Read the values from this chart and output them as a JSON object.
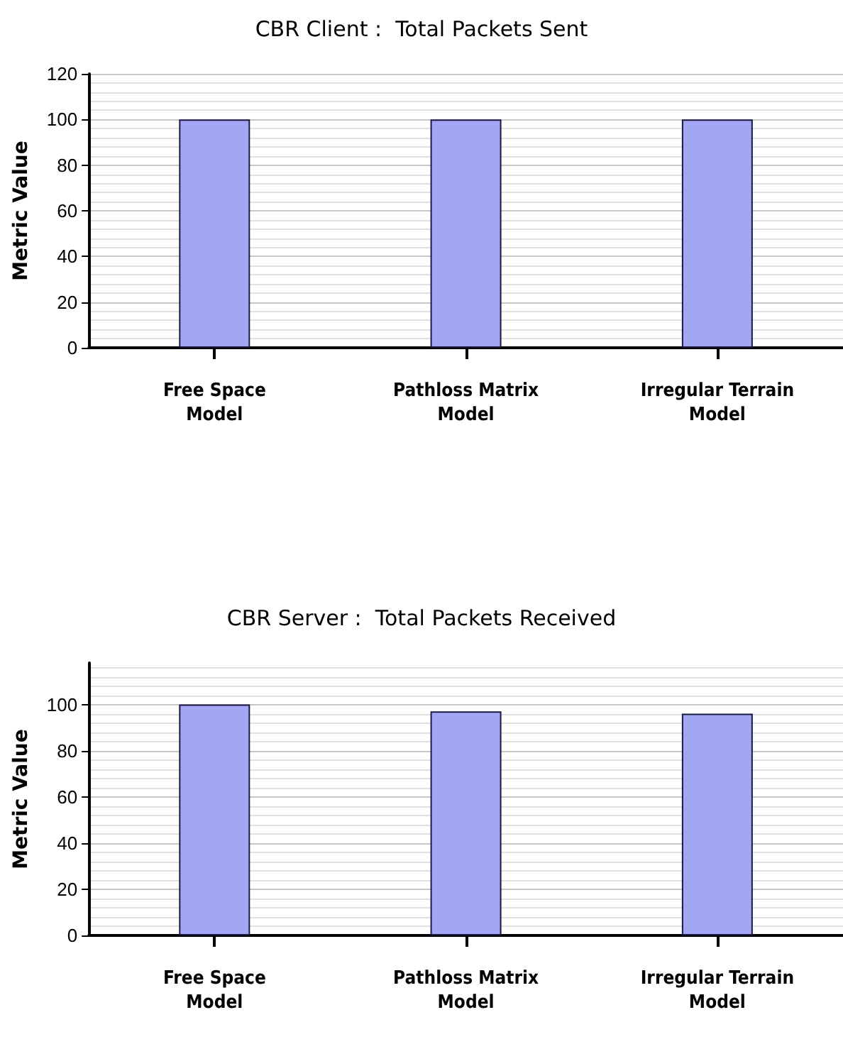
{
  "chart_data": [
    {
      "type": "bar",
      "title": "CBR Client :  Total Packets Sent",
      "ylabel": "Metric Value",
      "categories": [
        "Free Space\nModel",
        "Pathloss Matrix\nModel",
        "Irregular Terrain\nModel"
      ],
      "values": [
        100,
        100,
        100
      ],
      "color": "#a3a6f5",
      "ylim": [
        0,
        120
      ],
      "yticks": [
        0,
        20,
        40,
        60,
        80,
        100,
        120
      ],
      "grid": "y"
    },
    {
      "type": "bar",
      "title": "CBR Server :  Total Packets Received",
      "ylabel": "Metric Value",
      "categories": [
        "Free Space\nModel",
        "Pathloss Matrix\nModel",
        "Irregular Terrain\nModel"
      ],
      "values": [
        100,
        97,
        96
      ],
      "color": "#a3a6f5",
      "ylim": [
        0,
        118
      ],
      "yticks": [
        0,
        20,
        40,
        60,
        80,
        100
      ],
      "grid": "y"
    }
  ]
}
